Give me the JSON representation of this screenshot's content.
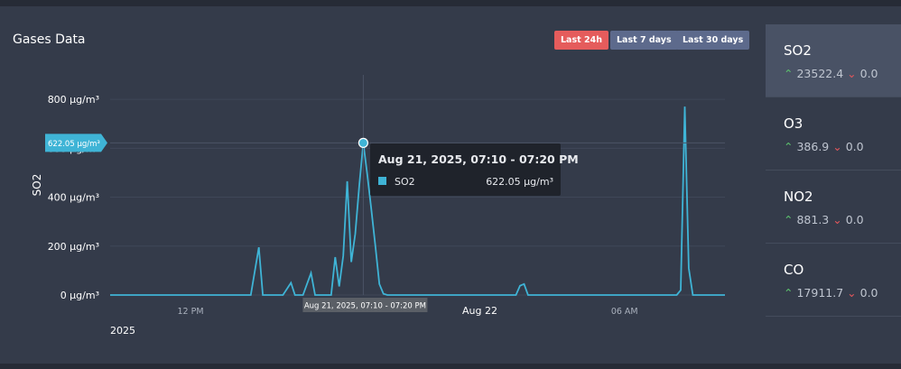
{
  "header": {
    "title": "Gases Data"
  },
  "range_buttons": [
    "Last 24h",
    "Last 7 days",
    "Last 30 days"
  ],
  "chart_data": {
    "type": "line",
    "y_label": "SO2",
    "year_label": "2025",
    "x": [
      "2025-08-21T08:40",
      "2025-08-21T14:30",
      "2025-08-21T14:50",
      "2025-08-21T15:00",
      "2025-08-21T15:50",
      "2025-08-21T16:10",
      "2025-08-21T16:20",
      "2025-08-21T16:40",
      "2025-08-21T17:00",
      "2025-08-21T17:10",
      "2025-08-21T17:50",
      "2025-08-21T18:00",
      "2025-08-21T18:10",
      "2025-08-21T18:20",
      "2025-08-21T18:30",
      "2025-08-21T18:40",
      "2025-08-21T18:50",
      "2025-08-21T19:00",
      "2025-08-21T19:10",
      "2025-08-21T19:20",
      "2025-08-21T19:30",
      "2025-08-21T19:40",
      "2025-08-21T19:50",
      "2025-08-21T20:00",
      "2025-08-21T20:10",
      "2025-08-22T01:30",
      "2025-08-22T01:40",
      "2025-08-22T01:50",
      "2025-08-22T02:00",
      "2025-08-22T08:10",
      "2025-08-22T08:20",
      "2025-08-22T08:30",
      "2025-08-22T08:40",
      "2025-08-22T08:50",
      "2025-08-22T10:10"
    ],
    "series": [
      {
        "name": "SO2",
        "color": "#3fb4d6",
        "values": [
          0,
          0,
          195,
          0,
          0,
          50,
          0,
          0,
          90,
          0,
          0,
          155,
          35,
          160,
          465,
          135,
          250,
          450,
          622.05,
          490,
          350,
          200,
          45,
          5,
          0,
          0,
          38,
          45,
          0,
          0,
          20,
          770,
          110,
          0,
          0
        ]
      }
    ],
    "xlim": [
      "2025-08-21T08:40",
      "2025-08-22T10:10"
    ],
    "xticks": [
      {
        "value": "2025-08-21T12:00",
        "label": "12 PM"
      },
      {
        "value": "2025-08-22T00:00",
        "label": "Aug 22"
      },
      {
        "value": "2025-08-22T06:00",
        "label": "06 AM"
      }
    ],
    "ylim": [
      0,
      900
    ],
    "yticks": [
      {
        "value": 0,
        "label": "0 µg/m³"
      },
      {
        "value": 200,
        "label": "200 µg/m³"
      },
      {
        "value": 400,
        "label": "400 µg/m³"
      },
      {
        "value": 600,
        "label": "600 µg/m³"
      },
      {
        "value": 800,
        "label": "800 µg/m³"
      }
    ],
    "grid": true,
    "tooltip": {
      "title": "Aug 21, 2025, 07:10 - 07:20 PM",
      "value": 622.05,
      "value_label": "622.05 µg/m³"
    }
  },
  "sidebar": [
    {
      "name": "SO2",
      "value": "23522.4",
      "change": "0.0"
    },
    {
      "name": "O3",
      "value": "386.9",
      "change": "0.0"
    },
    {
      "name": "NO2",
      "value": "881.3",
      "change": "0.0"
    },
    {
      "name": "CO",
      "value": "17911.7",
      "change": "0.0"
    }
  ]
}
